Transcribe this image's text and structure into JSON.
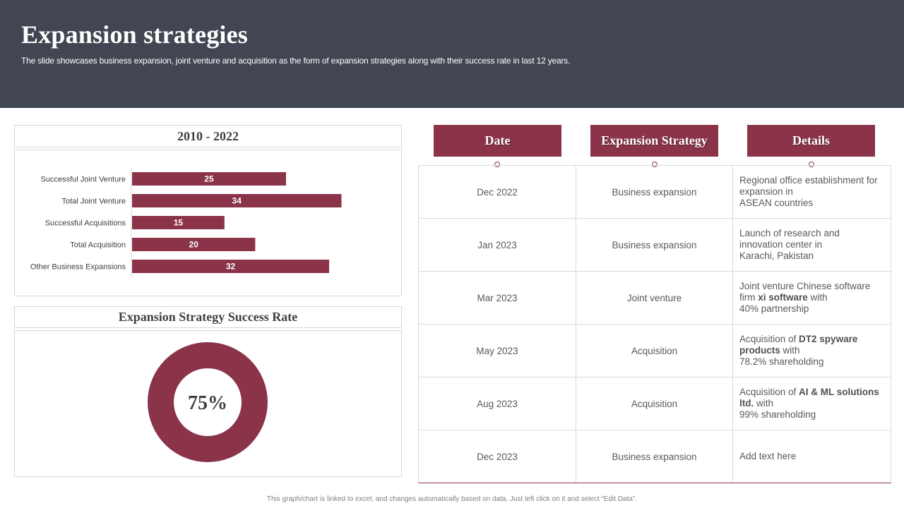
{
  "header": {
    "title": "Expansion strategies",
    "subtitle": "The slide showcases business expansion, joint venture and acquisition as the form of expansion strategies along with their success rate in last 12 years."
  },
  "bar_panel": {
    "title": "2010 - 2022"
  },
  "donut_panel": {
    "title": "Expansion Strategy Success Rate",
    "value_label": "75%"
  },
  "chart_data": [
    {
      "type": "bar",
      "orientation": "horizontal",
      "categories": [
        "Successful Joint Venture",
        "Total Joint Venture",
        "Successful Acquisitions",
        "Total Acquisition",
        "Other Business Expansions"
      ],
      "values": [
        25,
        34,
        15,
        20,
        32
      ],
      "title": "2010 - 2022",
      "color": "#8a3349",
      "data_labels": true,
      "grid": false
    },
    {
      "type": "pie",
      "variant": "donut",
      "title": "Expansion Strategy Success Rate",
      "values": [
        75,
        25
      ],
      "center_label": "75%",
      "color": "#8a3349"
    }
  ],
  "table": {
    "headers": [
      "Date",
      "Expansion Strategy",
      "Details"
    ],
    "rows": [
      {
        "date": "Dec 2022",
        "strategy": "Business expansion",
        "details": [
          {
            "t": "Regional office establishment for expansion in"
          },
          {
            "br": true
          },
          {
            "t": "ASEAN countries"
          }
        ]
      },
      {
        "date": "Jan 2023",
        "strategy": "Business expansion",
        "details": [
          {
            "t": "Launch of research and innovation center in"
          },
          {
            "br": true
          },
          {
            "t": "Karachi, Pakistan"
          }
        ]
      },
      {
        "date": "Mar 2023",
        "strategy": "Joint venture",
        "details": [
          {
            "t": "Joint venture Chinese software firm "
          },
          {
            "t": "xi software",
            "b": true
          },
          {
            "t": " with"
          },
          {
            "br": true
          },
          {
            "t": "40% partnership"
          }
        ]
      },
      {
        "date": "May 2023",
        "strategy": "Acquisition",
        "details": [
          {
            "t": "Acquisition of "
          },
          {
            "t": "DT2 spyware products",
            "b": true
          },
          {
            "t": "  with"
          },
          {
            "br": true
          },
          {
            "t": "78.2% shareholding"
          }
        ]
      },
      {
        "date": "Aug 2023",
        "strategy": "Acquisition",
        "details": [
          {
            "t": "Acquisition of "
          },
          {
            "t": "AI & ML solutions ltd.",
            "b": true
          },
          {
            "t": " with"
          },
          {
            "br": true
          },
          {
            "t": "99% shareholding"
          }
        ]
      },
      {
        "date": "Dec 2023",
        "strategy": "Business expansion",
        "details": [
          {
            "t": "Add text here"
          }
        ]
      }
    ]
  },
  "footer_note": "This graph/chart is linked to excel, and changes automatically based on data. Just left click on it and select “Edit Data”.",
  "colors": {
    "accent": "#8a3349",
    "header_bg": "#414652"
  }
}
